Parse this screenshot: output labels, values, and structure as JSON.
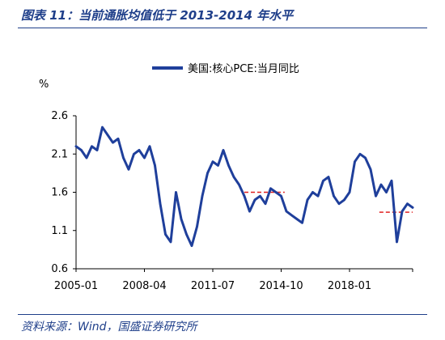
{
  "header": {
    "title": "图表 11：当前通胀均值低于 2013-2014 年水平"
  },
  "footer": {
    "source": "资料来源：Wind，国盛证券研究所"
  },
  "colors": {
    "series": "#1f3f9b",
    "reference": "#e02020",
    "text_blue": "#1f3f8a"
  },
  "chart_data": {
    "type": "line",
    "title": "",
    "xlabel": "",
    "ylabel": "%",
    "ylim": [
      0.6,
      2.6
    ],
    "yticks": [
      "2.6",
      "2.1",
      "1.6",
      "1.1",
      "0.6"
    ],
    "xticks": [
      "2005-01",
      "2008-04",
      "2011-07",
      "2014-10",
      "2018-01"
    ],
    "x_range": [
      "2005-01",
      "2021-01"
    ],
    "legend": {
      "position": "top",
      "entries": [
        "美国:核心PCE:当月同比"
      ]
    },
    "grid": false,
    "series": [
      {
        "name": "美国:核心PCE:当月同比",
        "x": [
          "2005-01",
          "2005-04",
          "2005-07",
          "2005-10",
          "2006-01",
          "2006-04",
          "2006-07",
          "2006-10",
          "2007-01",
          "2007-04",
          "2007-07",
          "2007-10",
          "2008-01",
          "2008-04",
          "2008-07",
          "2008-10",
          "2009-01",
          "2009-04",
          "2009-07",
          "2009-10",
          "2010-01",
          "2010-04",
          "2010-07",
          "2010-10",
          "2011-01",
          "2011-04",
          "2011-07",
          "2011-10",
          "2012-01",
          "2012-04",
          "2012-07",
          "2012-10",
          "2013-01",
          "2013-04",
          "2013-07",
          "2013-10",
          "2014-01",
          "2014-04",
          "2014-07",
          "2014-10",
          "2015-01",
          "2015-04",
          "2015-07",
          "2015-10",
          "2016-01",
          "2016-04",
          "2016-07",
          "2016-10",
          "2017-01",
          "2017-04",
          "2017-07",
          "2017-10",
          "2018-01",
          "2018-04",
          "2018-07",
          "2018-10",
          "2019-01",
          "2019-04",
          "2019-07",
          "2019-10",
          "2020-01",
          "2020-04",
          "2020-07",
          "2020-10",
          "2021-01"
        ],
        "values": [
          2.2,
          2.15,
          2.05,
          2.2,
          2.15,
          2.45,
          2.35,
          2.25,
          2.3,
          2.05,
          1.9,
          2.1,
          2.15,
          2.05,
          2.2,
          1.95,
          1.45,
          1.05,
          0.95,
          1.6,
          1.25,
          1.05,
          0.9,
          1.15,
          1.55,
          1.85,
          2.0,
          1.95,
          2.15,
          1.95,
          1.8,
          1.7,
          1.55,
          1.35,
          1.5,
          1.55,
          1.45,
          1.65,
          1.6,
          1.55,
          1.35,
          1.3,
          1.25,
          1.2,
          1.5,
          1.6,
          1.55,
          1.75,
          1.8,
          1.55,
          1.45,
          1.5,
          1.6,
          2.0,
          2.1,
          2.05,
          1.9,
          1.55,
          1.7,
          1.6,
          1.75,
          0.95,
          1.35,
          1.45,
          1.4
        ]
      }
    ],
    "reference_lines": [
      {
        "from": "2013-01",
        "to": "2014-12",
        "value": 1.6
      },
      {
        "from": "2019-06",
        "to": "2021-01",
        "value": 1.34
      }
    ]
  }
}
